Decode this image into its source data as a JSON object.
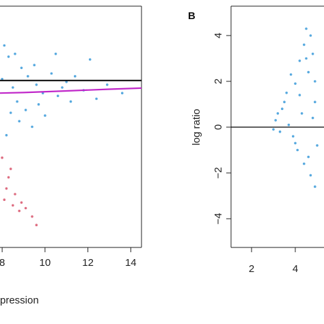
{
  "chart_data": [
    {
      "type": "scatter",
      "panel_label": "",
      "xlabel": "pression",
      "ylabel": "",
      "x_ticks": [
        8,
        10,
        12,
        14
      ],
      "xlim": [
        7.9,
        14.5
      ],
      "ylim": [
        -4.6,
        4.0
      ],
      "reference_line": {
        "y": 1.35,
        "color": "#000000"
      },
      "fit_curve": {
        "color": "#c026c9",
        "points": [
          [
            7.9,
            0.9
          ],
          [
            9.0,
            0.92
          ],
          [
            11.0,
            0.98
          ],
          [
            13.0,
            1.04
          ],
          [
            14.5,
            1.08
          ]
        ]
      },
      "series": [
        {
          "color": "#3a9ad9",
          "points": [
            [
              8.1,
              2.6
            ],
            [
              8.3,
              2.2
            ],
            [
              8.6,
              2.3
            ],
            [
              8.9,
              1.8
            ],
            [
              9.2,
              1.5
            ],
            [
              9.6,
              1.2
            ],
            [
              9.9,
              0.9
            ],
            [
              10.3,
              1.6
            ],
            [
              10.8,
              1.1
            ],
            [
              11.2,
              0.6
            ],
            [
              11.8,
              1.0
            ],
            [
              12.4,
              0.7
            ],
            [
              12.1,
              2.1
            ],
            [
              10.5,
              2.3
            ],
            [
              9.1,
              0.3
            ],
            [
              8.8,
              -0.1
            ],
            [
              8.4,
              0.2
            ],
            [
              9.4,
              -0.3
            ],
            [
              8.2,
              -0.6
            ],
            [
              8.7,
              0.6
            ],
            [
              10.0,
              0.1
            ],
            [
              9.5,
              1.9
            ],
            [
              11.4,
              1.5
            ],
            [
              12.9,
              1.2
            ],
            [
              13.6,
              0.9
            ],
            [
              8.0,
              1.4
            ],
            [
              8.5,
              1.1
            ],
            [
              9.7,
              0.5
            ],
            [
              10.6,
              0.8
            ],
            [
              11.0,
              1.3
            ]
          ]
        },
        {
          "color": "#d8556c",
          "points": [
            [
              8.0,
              -1.4
            ],
            [
              8.3,
              -2.1
            ],
            [
              8.6,
              -2.7
            ],
            [
              8.9,
              -3.0
            ],
            [
              9.1,
              -3.2
            ],
            [
              9.4,
              -3.5
            ],
            [
              8.2,
              -2.5
            ],
            [
              8.5,
              -3.1
            ],
            [
              8.8,
              -3.3
            ],
            [
              9.6,
              -3.8
            ],
            [
              8.1,
              -2.9
            ],
            [
              8.4,
              -1.8
            ]
          ]
        }
      ]
    },
    {
      "type": "scatter",
      "panel_label": "B",
      "xlabel": "",
      "ylabel": "log ratio",
      "x_ticks": [
        2,
        4
      ],
      "y_ticks": [
        -4,
        -2,
        0,
        2,
        4
      ],
      "xlim": [
        1.6,
        5.2
      ],
      "ylim": [
        -4.6,
        4.0
      ],
      "reference_line": {
        "y": 0,
        "color": "#000000"
      },
      "series": [
        {
          "color": "#3a9ad9",
          "points": [
            [
              3.1,
              0.3
            ],
            [
              3.4,
              0.8
            ],
            [
              3.6,
              1.5
            ],
            [
              3.8,
              2.3
            ],
            [
              4.0,
              1.9
            ],
            [
              4.2,
              2.9
            ],
            [
              4.4,
              3.6
            ],
            [
              4.5,
              4.3
            ],
            [
              4.6,
              2.4
            ],
            [
              4.8,
              3.2
            ],
            [
              4.9,
              1.1
            ],
            [
              4.3,
              0.6
            ],
            [
              3.9,
              -0.4
            ],
            [
              4.1,
              -1.0
            ],
            [
              4.4,
              -1.6
            ],
            [
              4.7,
              -2.1
            ],
            [
              4.9,
              -2.6
            ],
            [
              5.0,
              -0.8
            ],
            [
              3.3,
              -0.2
            ],
            [
              3.7,
              0.1
            ],
            [
              4.0,
              -0.7
            ],
            [
              4.6,
              -1.3
            ],
            [
              4.8,
              0.4
            ],
            [
              3.5,
              1.1
            ],
            [
              4.2,
              1.4
            ],
            [
              4.5,
              3.0
            ],
            [
              4.7,
              4.0
            ],
            [
              3.2,
              0.6
            ],
            [
              3.0,
              -0.1
            ],
            [
              4.9,
              2.0
            ]
          ]
        }
      ]
    }
  ]
}
